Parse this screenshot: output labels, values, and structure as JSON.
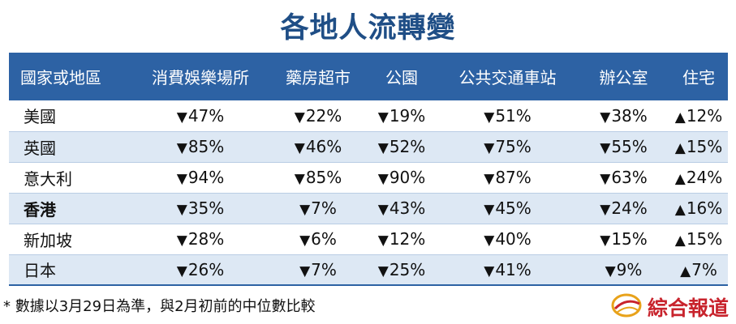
{
  "title": "各地人流轉變",
  "chart_data": {
    "type": "table",
    "columns": [
      "國家或地區",
      "消費娛樂場所",
      "藥房超市",
      "公園",
      "公共交通車站",
      "辦公室",
      "住宅"
    ],
    "rows": [
      {
        "region": "美國",
        "bold": false,
        "cells": [
          {
            "dir": "down",
            "value": "47%"
          },
          {
            "dir": "down",
            "value": "22%"
          },
          {
            "dir": "down",
            "value": "19%"
          },
          {
            "dir": "down",
            "value": "51%"
          },
          {
            "dir": "down",
            "value": "38%"
          },
          {
            "dir": "up",
            "value": "12%"
          }
        ]
      },
      {
        "region": "英國",
        "bold": false,
        "cells": [
          {
            "dir": "down",
            "value": "85%"
          },
          {
            "dir": "down",
            "value": "46%"
          },
          {
            "dir": "down",
            "value": "52%"
          },
          {
            "dir": "down",
            "value": "75%"
          },
          {
            "dir": "down",
            "value": "55%"
          },
          {
            "dir": "up",
            "value": "15%"
          }
        ]
      },
      {
        "region": "意大利",
        "bold": false,
        "cells": [
          {
            "dir": "down",
            "value": "94%"
          },
          {
            "dir": "down",
            "value": "85%"
          },
          {
            "dir": "down",
            "value": "90%"
          },
          {
            "dir": "down",
            "value": "87%"
          },
          {
            "dir": "down",
            "value": "63%"
          },
          {
            "dir": "up",
            "value": "24%"
          }
        ]
      },
      {
        "region": "香港",
        "bold": true,
        "cells": [
          {
            "dir": "down",
            "value": "35%"
          },
          {
            "dir": "down",
            "value": "7%"
          },
          {
            "dir": "down",
            "value": "43%"
          },
          {
            "dir": "down",
            "value": "45%"
          },
          {
            "dir": "down",
            "value": "24%"
          },
          {
            "dir": "up",
            "value": "16%"
          }
        ]
      },
      {
        "region": "新加坡",
        "bold": false,
        "cells": [
          {
            "dir": "down",
            "value": "28%"
          },
          {
            "dir": "down",
            "value": "6%"
          },
          {
            "dir": "down",
            "value": "12%"
          },
          {
            "dir": "down",
            "value": "40%"
          },
          {
            "dir": "down",
            "value": "15%"
          },
          {
            "dir": "up",
            "value": "15%"
          }
        ]
      },
      {
        "region": "日本",
        "bold": false,
        "cells": [
          {
            "dir": "down",
            "value": "26%"
          },
          {
            "dir": "down",
            "value": "7%"
          },
          {
            "dir": "down",
            "value": "25%"
          },
          {
            "dir": "down",
            "value": "41%"
          },
          {
            "dir": "down",
            "value": "9%"
          },
          {
            "dir": "up",
            "value": "7%"
          }
        ]
      }
    ]
  },
  "arrows": {
    "down": "▼",
    "up": "▲"
  },
  "footnote": "* 數據以3月29日為準，與2月初前的中位數比較",
  "logo": {
    "text": "綜合報道",
    "icon": "globe-logo-icon"
  },
  "colors": {
    "title": "#1f4e86",
    "header_bg": "#2d62a4",
    "stripe": "#dde8f4",
    "logo_red": "#c8232c"
  }
}
